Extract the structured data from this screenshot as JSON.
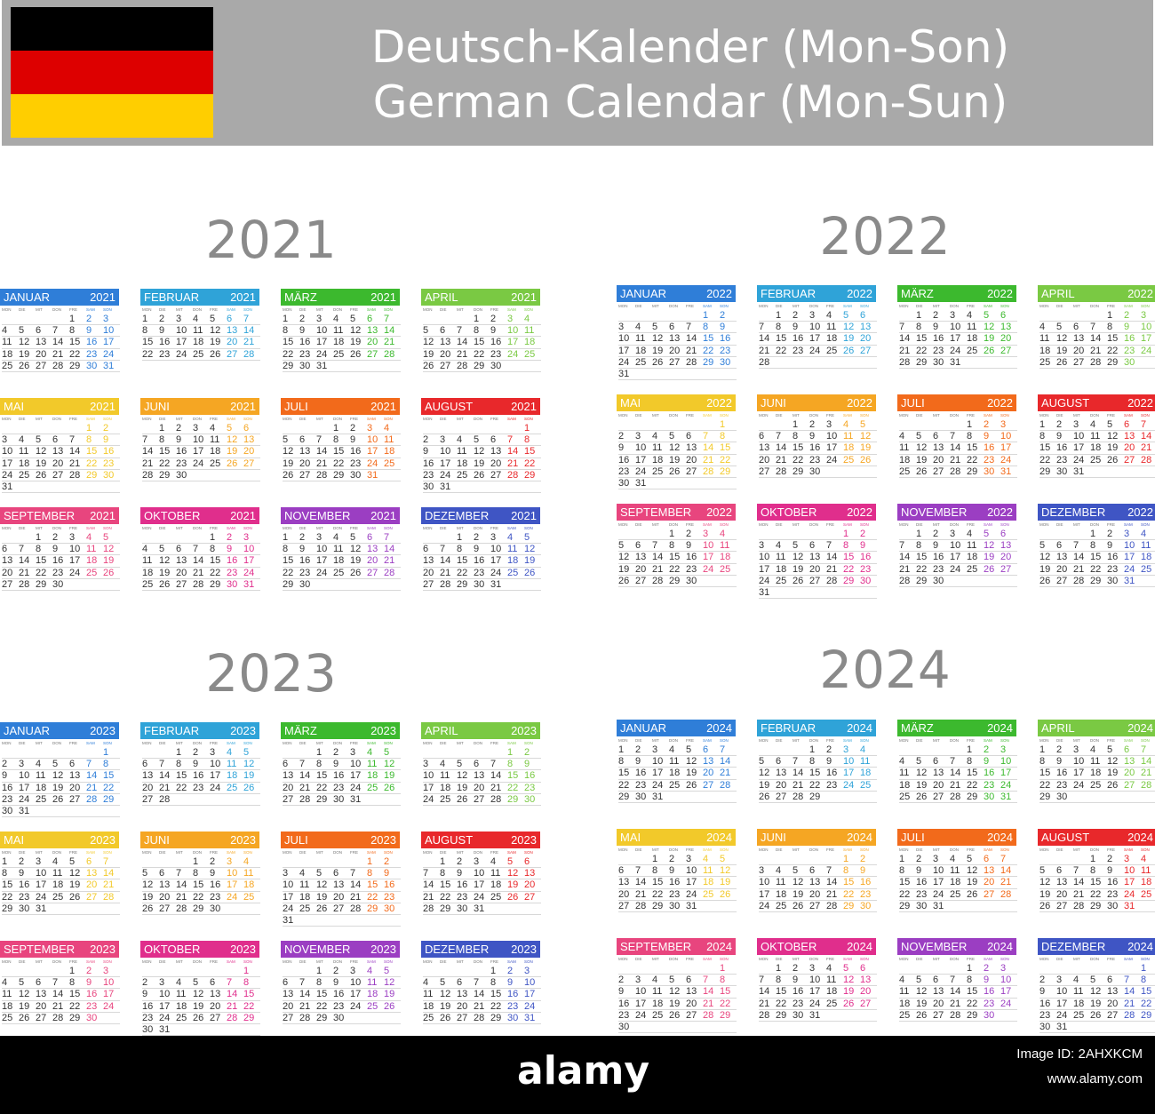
{
  "header": {
    "title_de": "Deutsch-Kalender (Mon-Son)",
    "title_en": "German Calendar (Mon-Sun)",
    "flag_colors": [
      "#000000",
      "#dd0000",
      "#ffce00"
    ]
  },
  "weekday_labels": [
    "MON",
    "DIE",
    "MIT",
    "DON",
    "FRE",
    "SAM",
    "SON"
  ],
  "month_names": [
    "JANUAR",
    "FEBRUAR",
    "MÄRZ",
    "APRIL",
    "MAI",
    "JUNI",
    "JULI",
    "AUGUST",
    "SEPTEMBER",
    "OKTOBER",
    "NOVEMBER",
    "DEZEMBER"
  ],
  "month_colors": [
    "#2f7ed8",
    "#2fa3d8",
    "#3cb92e",
    "#7ac943",
    "#f2c92a",
    "#f5a623",
    "#f26a1b",
    "#e8282b",
    "#e8457e",
    "#e02e8c",
    "#9b3ec2",
    "#3f55c4"
  ],
  "years": [
    {
      "year": "2021"
    },
    {
      "year": "2022"
    },
    {
      "year": "2023"
    },
    {
      "year": "2024"
    }
  ],
  "footer": {
    "logo": "alamy",
    "image_id": "Image ID: 2AHXKCM",
    "url": "www.alamy.com"
  }
}
